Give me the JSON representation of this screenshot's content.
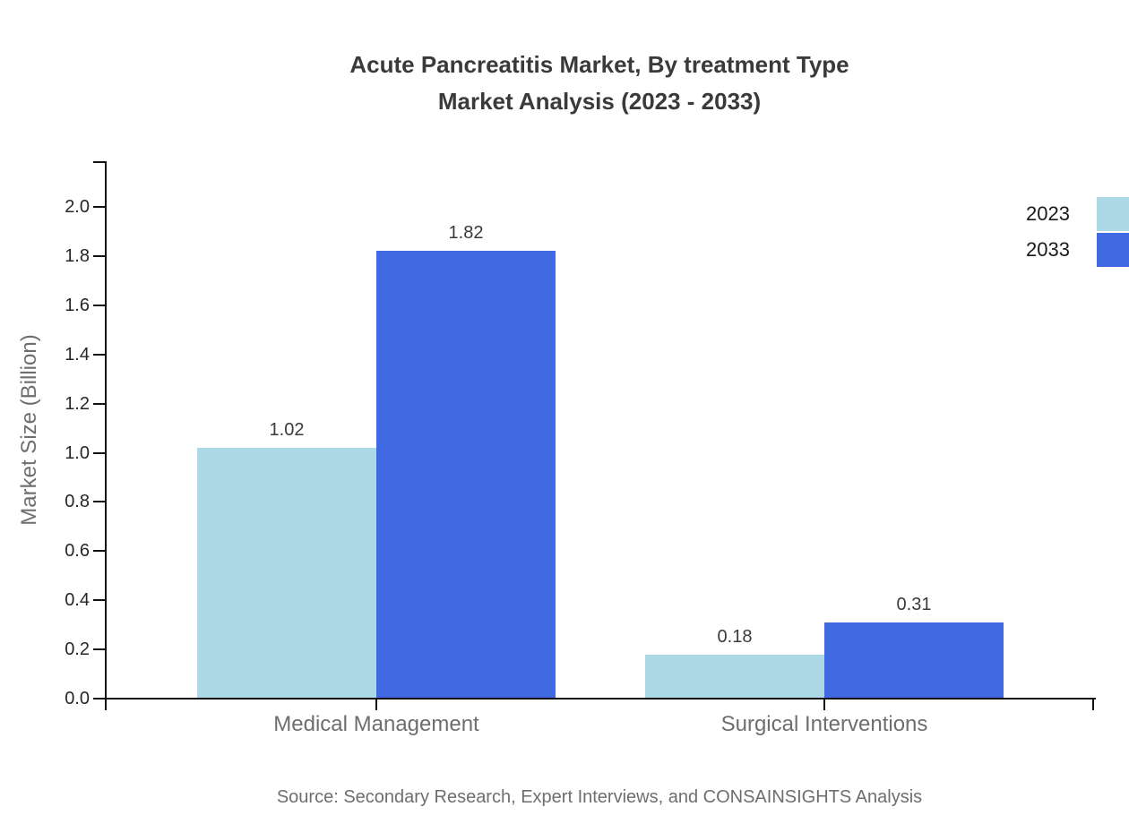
{
  "chart_data": {
    "type": "bar",
    "title_line1": "Acute Pancreatitis Market, By treatment Type",
    "title_line2": "Market Analysis (2023 - 2033)",
    "ylabel": "Market Size (Billion)",
    "categories": [
      "Medical Management",
      "Surgical Interventions"
    ],
    "series": [
      {
        "name": "2023",
        "color": "#ADD8E6",
        "values": [
          1.02,
          0.18
        ],
        "labels": [
          "1.02",
          "0.18"
        ]
      },
      {
        "name": "2033",
        "color": "#4169E1",
        "values": [
          1.82,
          0.31
        ],
        "labels": [
          "1.82",
          "0.31"
        ]
      }
    ],
    "ylim": [
      0.0,
      2.0
    ],
    "ytick_step": 0.2,
    "ytick_labels": [
      "0.0",
      "0.2",
      "0.4",
      "0.6",
      "0.8",
      "1.0",
      "1.2",
      "1.4",
      "1.6",
      "1.8",
      "2.0"
    ],
    "grid": false,
    "legend_position": "top-right",
    "source": "Source: Secondary Research, Expert Interviews, and CONSAINSIGHTS Analysis",
    "colors": {
      "background": "#FFFFFF",
      "axis_line": "#111111",
      "title_text": "#3A3A3A",
      "tick_label_text": "#262626",
      "category_text": "#6E6E6E",
      "legend_text": "#1A1A1A",
      "source_text": "#6E6E6E"
    }
  }
}
